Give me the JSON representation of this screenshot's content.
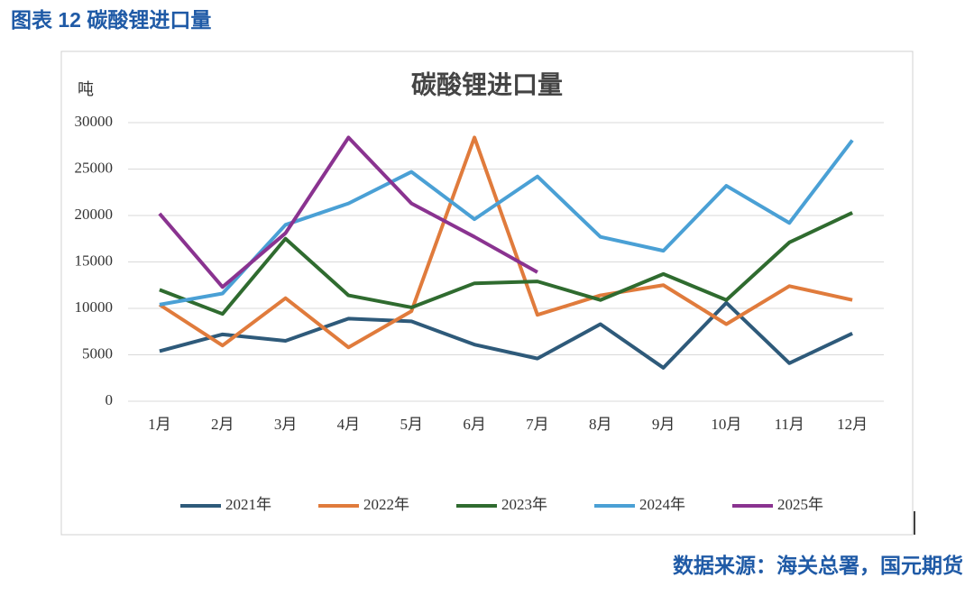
{
  "heading": "图表 12 碳酸锂进口量",
  "source": "数据来源：海关总署，国元期货",
  "chart_data": {
    "type": "line",
    "title": "碳酸锂进口量",
    "y_label": "吨",
    "categories": [
      "1月",
      "2月",
      "3月",
      "4月",
      "5月",
      "6月",
      "7月",
      "8月",
      "9月",
      "10月",
      "11月",
      "12月"
    ],
    "series": [
      {
        "name": "2021年",
        "color": "#2e5a7a",
        "values": [
          5400,
          7200,
          6500,
          8900,
          8600,
          6100,
          4600,
          8300,
          3600,
          10600,
          4100,
          7300
        ]
      },
      {
        "name": "2022年",
        "color": "#e07b3c",
        "values": [
          10400,
          6000,
          11100,
          5800,
          9700,
          28400,
          9300,
          11400,
          12500,
          8300,
          12400,
          10900
        ]
      },
      {
        "name": "2023年",
        "color": "#2f6b2f",
        "values": [
          12000,
          9400,
          17500,
          11400,
          10100,
          12700,
          12900,
          10900,
          13700,
          10900,
          17100,
          20300
        ]
      },
      {
        "name": "2024年",
        "color": "#4aa0d5",
        "values": [
          10400,
          11600,
          19000,
          21300,
          24700,
          19600,
          24200,
          17700,
          16200,
          23200,
          19200,
          28100
        ]
      },
      {
        "name": "2025年",
        "color": "#8a3390",
        "values": [
          20200,
          12300,
          18100,
          28400,
          21300,
          17700,
          13900,
          null,
          null,
          null,
          null,
          null
        ]
      }
    ],
    "ylim": [
      0,
      30000
    ],
    "yticks": [
      0,
      5000,
      10000,
      15000,
      20000,
      25000,
      30000
    ],
    "grid": true,
    "legend": "bottom"
  }
}
